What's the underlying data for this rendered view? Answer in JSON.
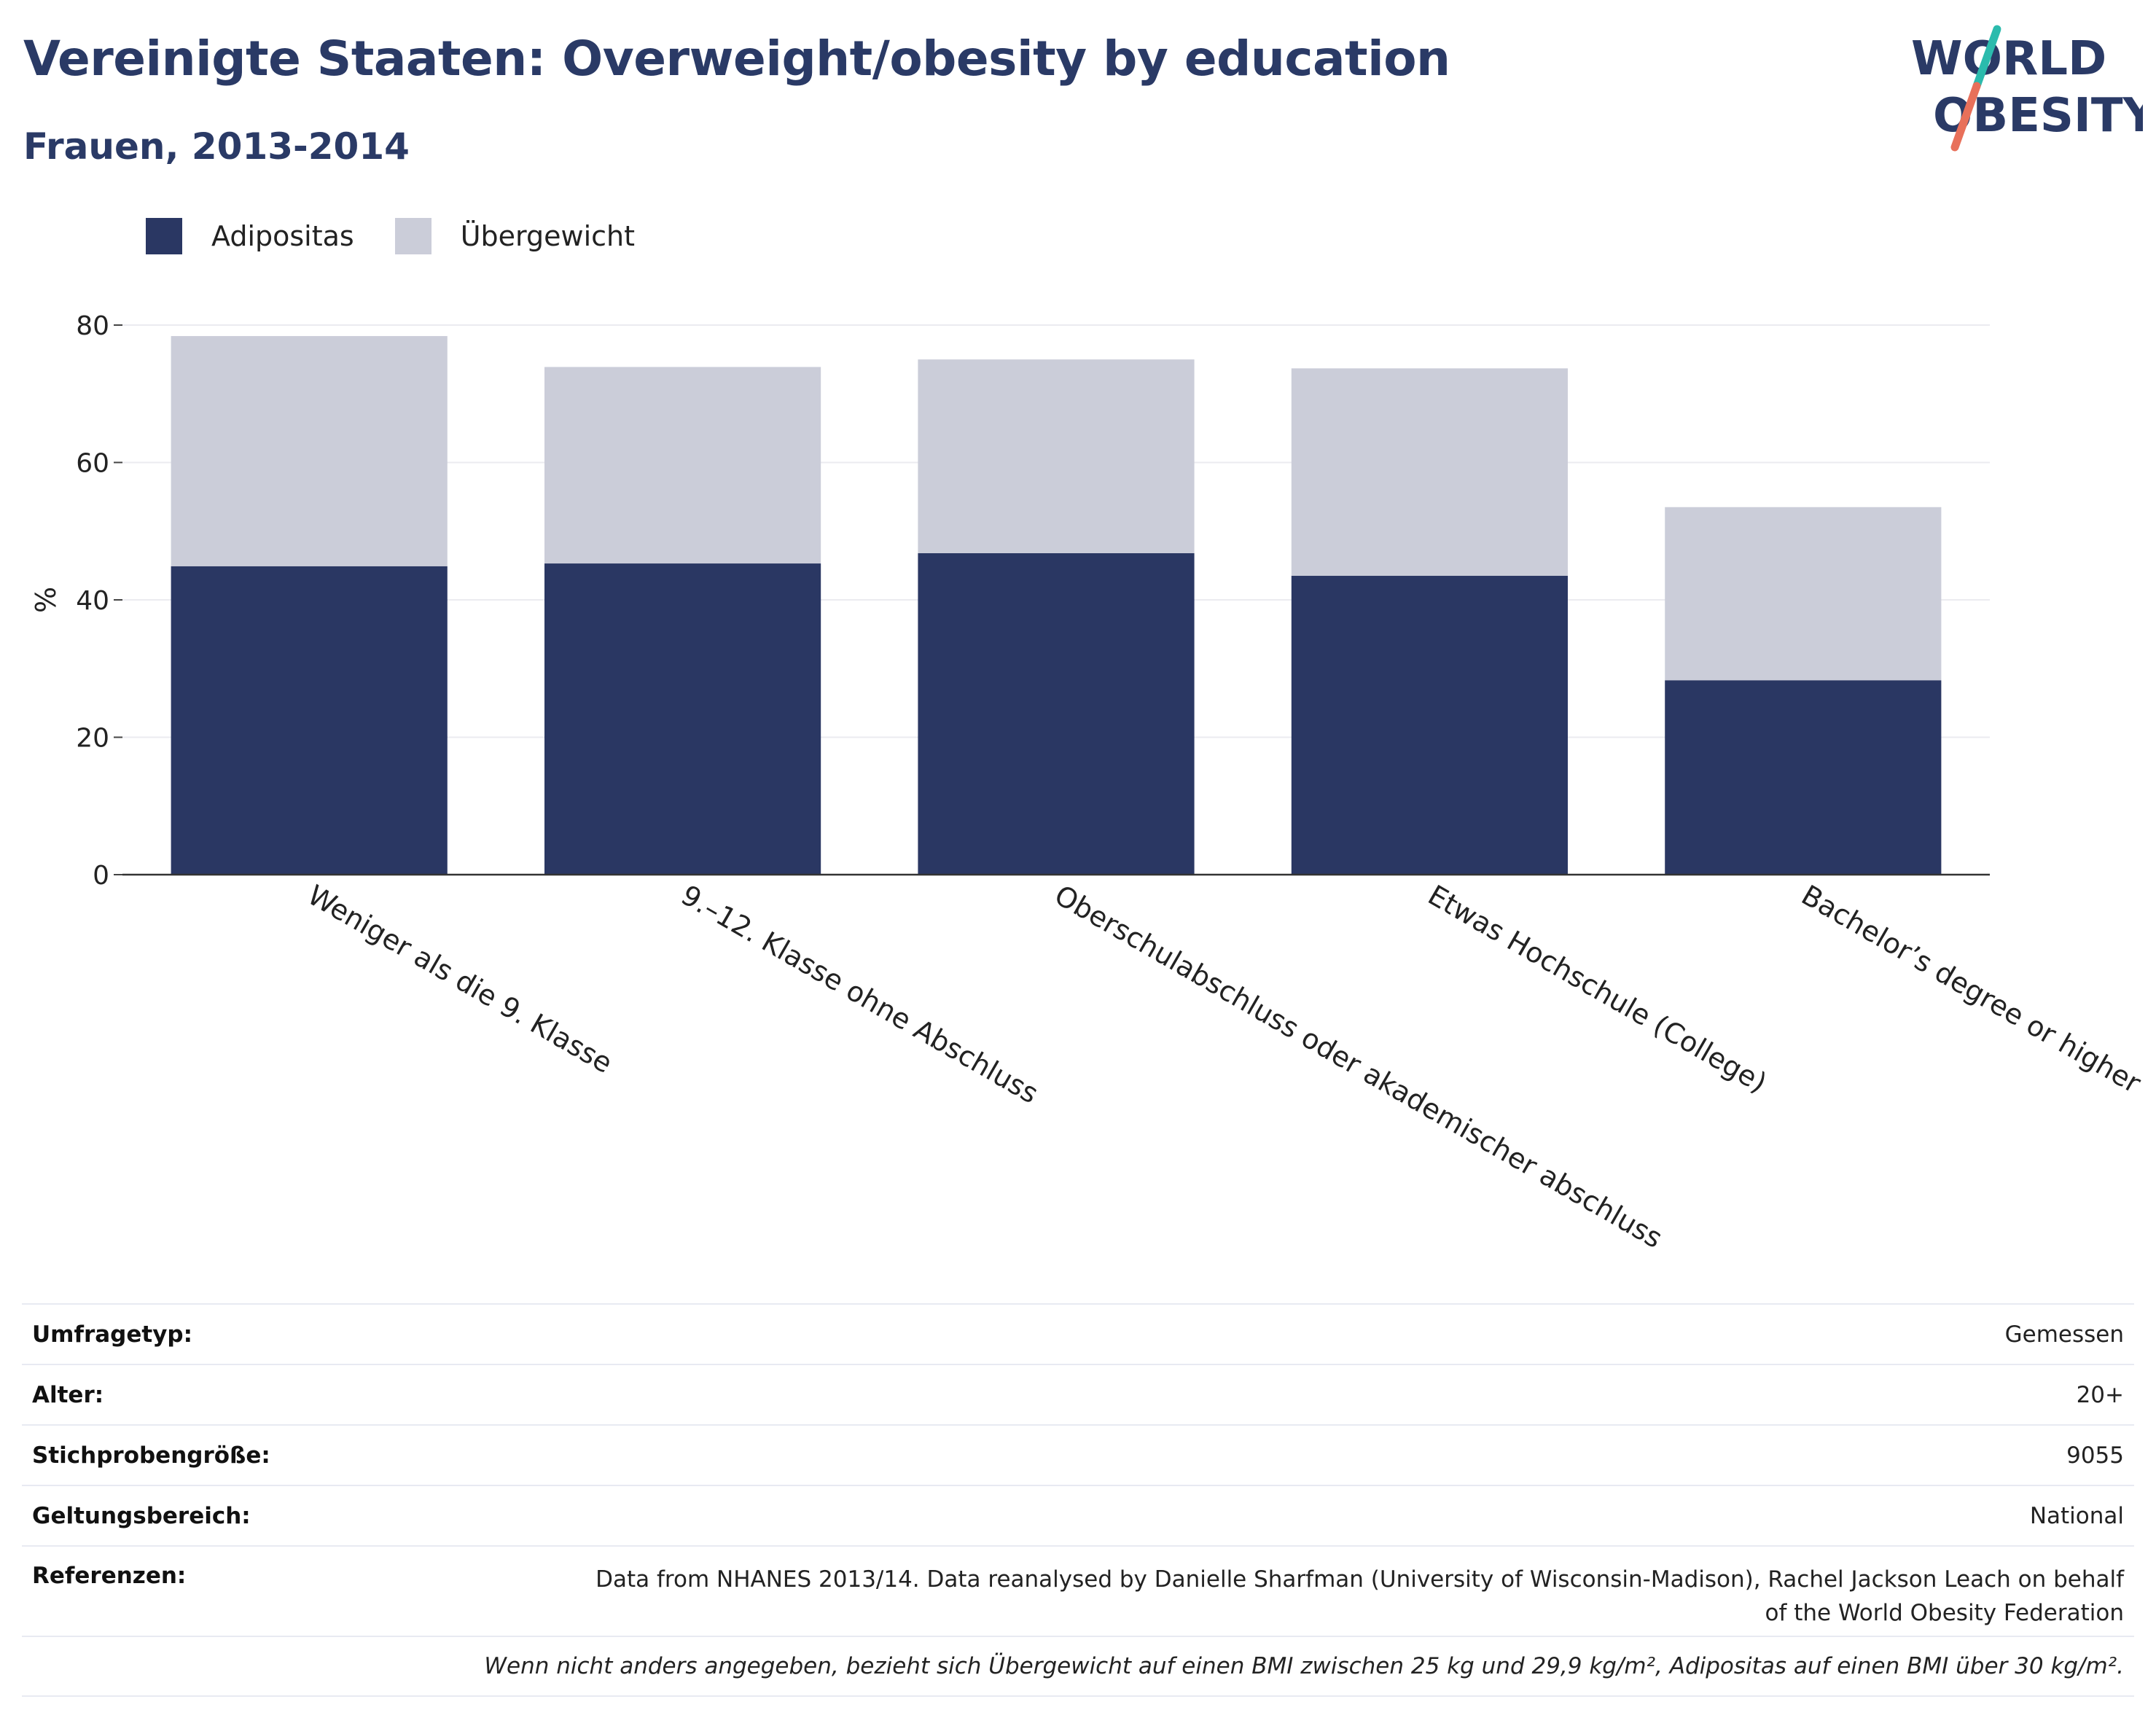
{
  "header": {
    "title": "Vereinigte Staaten: Overweight/obesity by education",
    "subtitle": "Frauen, 2013-2014"
  },
  "logo": {
    "line1": "WORLD",
    "line2": "OBESITY",
    "colors": {
      "text": "#2a3a66",
      "slash_top": "#2bbbad",
      "slash_bottom": "#e8705a"
    }
  },
  "chart_data": {
    "type": "bar",
    "stacked": true,
    "categories": [
      "Weniger als die 9. Klasse",
      "9.–12. Klasse ohne Abschluss",
      "Oberschulabschluss oder akademischer abschluss",
      "Etwas Hochschule (College)",
      "Bachelor’s degree or higher"
    ],
    "series": [
      {
        "name": "Adipositas",
        "color": "#2a3763",
        "values": [
          44.9,
          45.3,
          46.8,
          43.5,
          28.3
        ]
      },
      {
        "name": "Übergewicht",
        "color": "#cbcdd9",
        "values": [
          33.5,
          28.6,
          28.2,
          30.2,
          25.2
        ]
      }
    ],
    "ylabel": "%",
    "xlabel": "",
    "ylim": [
      0,
      80
    ],
    "yticks": [
      0,
      20,
      40,
      60,
      80
    ],
    "grid": true,
    "legend_position": "top-left"
  },
  "info": {
    "rows": [
      {
        "label": "Umfragetyp:",
        "value": "Gemessen"
      },
      {
        "label": "Alter:",
        "value": "20+"
      },
      {
        "label": "Stichprobengröße:",
        "value": "9055"
      },
      {
        "label": "Geltungsbereich:",
        "value": "National"
      }
    ],
    "references": {
      "label": "Referenzen:",
      "line1": "Data from NHANES 2013/14. Data reanalysed by Danielle Sharfman (University of Wisconsin-Madison), Rachel Jackson Leach on behalf",
      "line2": "of the World Obesity Federation"
    },
    "note": "Wenn nicht anders angegeben, bezieht sich Übergewicht auf einen BMI zwischen 25 kg und 29,9 kg/m², Adipositas auf einen BMI über 30 kg/m²."
  }
}
